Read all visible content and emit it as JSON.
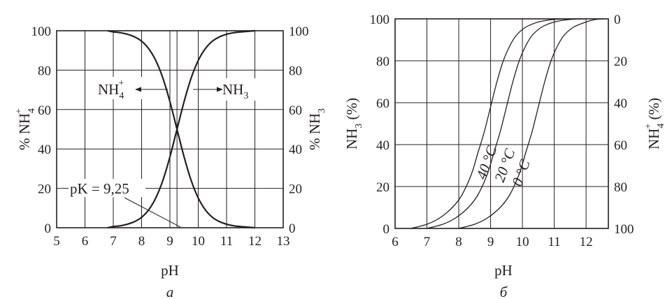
{
  "chart_data": [
    {
      "panel_label": "а",
      "type": "line",
      "x": {
        "label": "pH",
        "ticks": [
          "5",
          "6",
          "7",
          "8",
          "9",
          "10",
          "11",
          "12",
          "13"
        ],
        "lim": [
          5,
          13
        ]
      },
      "y_left": {
        "label_main": "% NH",
        "label_sub": "4",
        "label_sup": "+",
        "ticks": [
          "0",
          "20",
          "40",
          "60",
          "80",
          "100"
        ],
        "lim": [
          0,
          100
        ]
      },
      "y_right": {
        "label_main": "% NH",
        "label_sub": "3",
        "ticks": [
          "0",
          "20",
          "40",
          "60",
          "80",
          "100"
        ],
        "lim": [
          0,
          100
        ]
      },
      "grid": true,
      "series": [
        {
          "name_main": "NH",
          "name_sub": "4",
          "name_sup": "+",
          "axis": "left",
          "x": [
            6.8,
            7.0,
            7.25,
            7.5,
            7.75,
            8.0,
            8.25,
            8.5,
            8.75,
            9.0,
            9.25,
            9.5,
            9.75,
            10.0,
            10.25,
            10.5,
            10.75,
            11.0,
            11.25,
            11.5,
            11.75,
            12.0
          ],
          "y": [
            100,
            99.4,
            99.0,
            98.2,
            96.9,
            94.7,
            90.9,
            84.9,
            76.0,
            64.0,
            50.0,
            36.0,
            24.0,
            15.1,
            9.1,
            5.3,
            3.1,
            1.8,
            1.0,
            0.6,
            0.3,
            0
          ]
        },
        {
          "name_main": "NH",
          "name_sub": "3",
          "axis": "right",
          "x": [
            6.8,
            7.0,
            7.25,
            7.5,
            7.75,
            8.0,
            8.25,
            8.5,
            8.75,
            9.0,
            9.25,
            9.5,
            9.75,
            10.0,
            10.25,
            10.5,
            10.75,
            11.0,
            11.25,
            11.5,
            11.75,
            12.0
          ],
          "y": [
            0,
            0.6,
            1.0,
            1.8,
            3.1,
            5.3,
            9.1,
            15.1,
            24.0,
            36.0,
            50.0,
            64.0,
            76.0,
            84.9,
            90.9,
            94.7,
            96.9,
            98.2,
            99.0,
            99.4,
            99.7,
            100
          ]
        }
      ],
      "annotations": [
        {
          "text": "pK = 9,25",
          "x": 9.25,
          "y": 0
        }
      ],
      "vline_x": 9.25
    },
    {
      "panel_label": "б",
      "type": "line",
      "x": {
        "label": "pH",
        "ticks": [
          "6",
          "7",
          "8",
          "9",
          "10",
          "11",
          "12"
        ],
        "lim": [
          6,
          12.7
        ]
      },
      "y_left": {
        "label_main": "NH",
        "label_sub": "3",
        "label_tail": " (%)",
        "ticks": [
          "0",
          "20",
          "40",
          "60",
          "80",
          "100"
        ],
        "lim": [
          0,
          100
        ]
      },
      "y_right": {
        "label_main": "NH",
        "label_sub": "4",
        "label_sup": "+",
        "label_tail": " (%)",
        "ticks": [
          "100",
          "80",
          "60",
          "40",
          "20",
          "0"
        ],
        "lim": [
          0,
          100
        ]
      },
      "grid": true,
      "series": [
        {
          "name": "40 °C",
          "x": [
            6.5,
            7.0,
            7.4,
            7.8,
            8.1,
            8.4,
            8.6,
            8.8,
            9.0,
            9.2,
            9.4,
            9.6,
            9.8,
            10.1,
            10.5,
            11.0,
            11.5
          ],
          "y": [
            0,
            2,
            5,
            10,
            16,
            26,
            36,
            46,
            58,
            70,
            80,
            87,
            92,
            96,
            98.5,
            99.7,
            100
          ]
        },
        {
          "name": "20 °C",
          "x": [
            7.0,
            7.5,
            7.9,
            8.3,
            8.6,
            8.9,
            9.1,
            9.3,
            9.5,
            9.7,
            9.9,
            10.1,
            10.3,
            10.6,
            11.0,
            11.5,
            12.0
          ],
          "y": [
            0,
            2,
            5,
            10,
            16,
            26,
            36,
            46,
            58,
            70,
            80,
            87,
            92,
            96,
            98.5,
            99.7,
            100
          ]
        },
        {
          "name": "0 °C",
          "x": [
            8.0,
            8.5,
            8.9,
            9.3,
            9.6,
            9.9,
            10.1,
            10.3,
            10.5,
            10.7,
            10.9,
            11.1,
            11.3,
            11.6,
            12.0,
            12.3,
            12.6
          ],
          "y": [
            0,
            2,
            5,
            10,
            16,
            26,
            36,
            46,
            58,
            70,
            80,
            87,
            92,
            96,
            98.5,
            99.7,
            100
          ]
        }
      ]
    }
  ]
}
